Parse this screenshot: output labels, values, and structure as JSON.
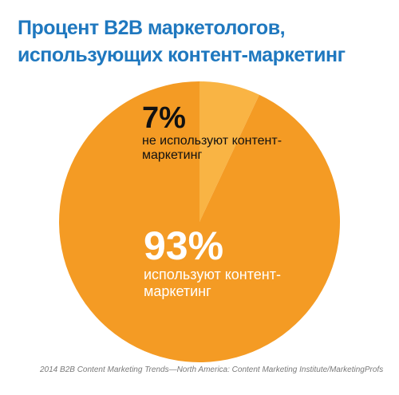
{
  "title_line1": "Процент B2B маркетологов,",
  "title_line2": "использующих контент-маркетинг",
  "chart_data": {
    "type": "pie",
    "title": "Процент B2B маркетологов, использующих контент-маркетинг",
    "slices": [
      {
        "label": "не используют контент-маркетинг",
        "value": 7,
        "value_label": "7%",
        "color": "#f9b444"
      },
      {
        "label": "используют контент-маркетинг",
        "value": 93,
        "value_label": "93%",
        "color": "#f49b24"
      }
    ]
  },
  "source": "2014 B2B Content Marketing Trends—North America: Content Marketing Institute/MarketingProfs"
}
